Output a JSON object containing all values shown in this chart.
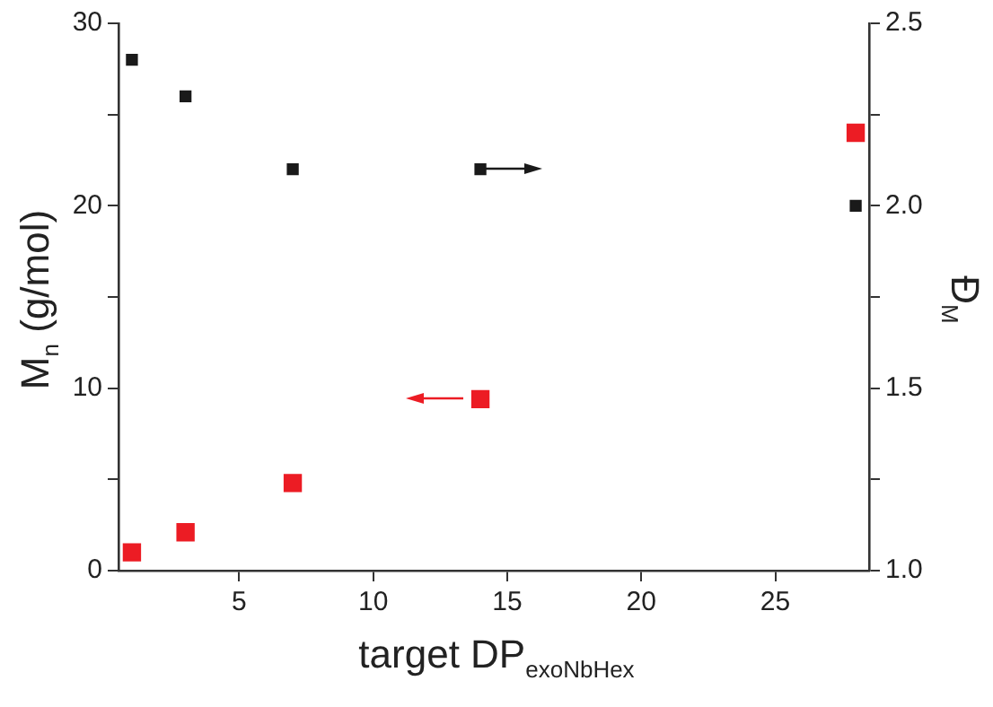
{
  "chart_data": {
    "type": "scatter",
    "xlabel": "target DP$_{exoNbHex}$",
    "ylabel": "M$_{n}$ (g/mol)",
    "y2label": "Đ$_{M}$",
    "x": [
      1,
      3,
      7,
      14,
      28
    ],
    "series": [
      {
        "color": "#ec1c24",
        "values": [
          1.0,
          2.1,
          4.8,
          9.4,
          24
        ]
      },
      {
        "color": "#1a1a1a",
        "axis": "y2",
        "values": [
          2.4,
          2.3,
          2.1,
          2.1,
          2.0
        ]
      }
    ],
    "xlim": [
      0.5,
      28.5
    ],
    "xticks": [
      5,
      10,
      15,
      20,
      25
    ],
    "ylim": [
      0,
      30
    ],
    "yticks": [
      0,
      {
        "value": 5,
        "label": null
      },
      10,
      {
        "value": 15,
        "label": null
      },
      20,
      {
        "value": 25,
        "label": null
      },
      30
    ],
    "y2lim": [
      1,
      2.5
    ],
    "y2ticks": [
      {
        "value": 1,
        "label": "1.0"
      },
      {
        "value": 1.25,
        "label": null
      },
      {
        "value": 1.5,
        "label": "1.5"
      },
      {
        "value": 1.75,
        "label": null
      },
      {
        "value": 2,
        "label": "2.0"
      },
      {
        "value": 2.25,
        "label": null
      },
      {
        "value": 2.5,
        "label": "2.5"
      }
    ],
    "marker": "square",
    "grid": false,
    "legend": false
  }
}
